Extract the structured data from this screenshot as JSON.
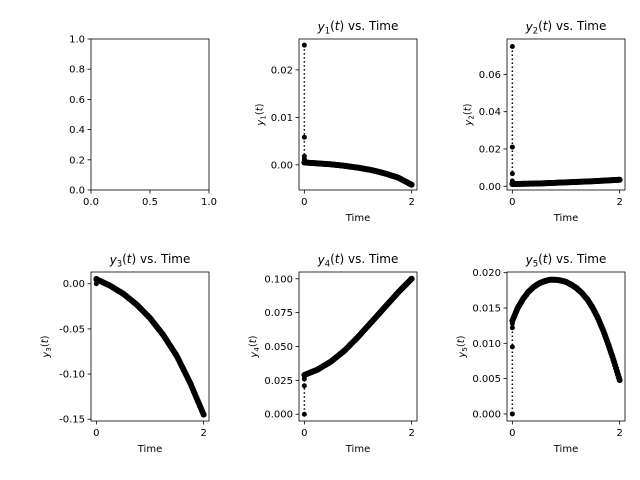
{
  "chart_data": [
    {
      "type": "line",
      "title": "",
      "xlabel": "",
      "ylabel": "",
      "xlim": [
        0,
        1
      ],
      "ylim": [
        0,
        1
      ],
      "xticks": [
        "0.0",
        "0.5",
        "1.0"
      ],
      "yticks": [
        "0.0",
        "0.2",
        "0.4",
        "0.6",
        "0.8",
        "1.0"
      ],
      "series": []
    },
    {
      "type": "scatter",
      "title": "y_1(t) vs. Time",
      "title_parts": [
        "y",
        "1",
        "(t) vs. Time"
      ],
      "xlabel": "Time",
      "ylabel": "y_1(t)",
      "ylabel_parts": [
        "y",
        "1",
        "(t)"
      ],
      "xlim": [
        -0.1,
        2.1
      ],
      "ylim": [
        -0.0053,
        0.0265
      ],
      "xticks": [
        "0",
        "2"
      ],
      "yticks": [
        "0.00",
        "0.01",
        "0.02"
      ],
      "initial_transient": {
        "t": 0,
        "values": [
          0.0252,
          0.0058,
          0.0018,
          0.0012,
          0.0007
        ]
      },
      "curve": {
        "t": [
          0,
          0.25,
          0.5,
          0.75,
          1.0,
          1.25,
          1.5,
          1.75,
          2.0
        ],
        "y": [
          0.0005,
          0.0003,
          0.0001,
          -0.0002,
          -0.0006,
          -0.0011,
          -0.0018,
          -0.0027,
          -0.0042
        ]
      }
    },
    {
      "type": "scatter",
      "title": "y_2(t) vs. Time",
      "title_parts": [
        "y",
        "2",
        "(t) vs. Time"
      ],
      "xlabel": "Time",
      "ylabel": "y_2(t)",
      "ylabel_parts": [
        "y",
        "2",
        "(t)"
      ],
      "xlim": [
        -0.1,
        2.1
      ],
      "ylim": [
        -0.002,
        0.079
      ],
      "xticks": [
        "0",
        "2"
      ],
      "yticks": [
        "0.00",
        "0.02",
        "0.04",
        "0.06"
      ],
      "initial_transient": {
        "t": 0,
        "values": [
          0.075,
          0.021,
          0.0068,
          0.0028,
          0.0015
        ]
      },
      "curve": {
        "t": [
          0,
          0.5,
          1.0,
          1.5,
          2.0
        ],
        "y": [
          0.0012,
          0.0015,
          0.0021,
          0.0027,
          0.0035
        ]
      }
    },
    {
      "type": "scatter",
      "title": "y_3(t) vs. Time",
      "title_parts": [
        "y",
        "3",
        "(t) vs. Time"
      ],
      "xlabel": "Time",
      "ylabel": "y_3(t)",
      "ylabel_parts": [
        "y",
        "3",
        "(t)"
      ],
      "xlim": [
        -0.1,
        2.1
      ],
      "ylim": [
        -0.152,
        0.013
      ],
      "xticks": [
        "0",
        "2"
      ],
      "yticks": [
        "0.00",
        "-0.05",
        "-0.10",
        "-0.15"
      ],
      "initial_transient": {
        "t": 0,
        "values": [
          0.006,
          0.0,
          0.004
        ]
      },
      "curve": {
        "t": [
          0,
          0.25,
          0.5,
          0.75,
          1.0,
          1.25,
          1.5,
          1.75,
          2.0
        ],
        "y": [
          0.005,
          -0.002,
          -0.011,
          -0.023,
          -0.038,
          -0.057,
          -0.08,
          -0.11,
          -0.145
        ]
      }
    },
    {
      "type": "scatter",
      "title": "y_4(t) vs. Time",
      "title_parts": [
        "y",
        "4",
        "(t) vs. Time"
      ],
      "xlabel": "Time",
      "ylabel": "y_4(t)",
      "ylabel_parts": [
        "y",
        "4",
        "(t)"
      ],
      "xlim": [
        -0.1,
        2.1
      ],
      "ylim": [
        -0.005,
        0.105
      ],
      "xticks": [
        "0",
        "2"
      ],
      "yticks": [
        "0.000",
        "0.025",
        "0.050",
        "0.075",
        "0.100"
      ],
      "initial_transient": {
        "t": 0,
        "values": [
          0.0,
          0.021,
          0.026,
          0.028
        ]
      },
      "curve": {
        "t": [
          0,
          0.25,
          0.5,
          0.75,
          1.0,
          1.25,
          1.5,
          1.75,
          2.0
        ],
        "y": [
          0.029,
          0.033,
          0.039,
          0.047,
          0.057,
          0.068,
          0.079,
          0.09,
          0.1
        ]
      }
    },
    {
      "type": "scatter",
      "title": "y_5(t) vs. Time",
      "title_parts": [
        "y",
        "5",
        "(t) vs. Time"
      ],
      "xlabel": "Time",
      "ylabel": "y_5(t)",
      "ylabel_parts": [
        "y",
        "5",
        "(t)"
      ],
      "xlim": [
        -0.1,
        2.1
      ],
      "ylim": [
        -0.001,
        0.0201
      ],
      "xticks": [
        "0",
        "2"
      ],
      "yticks": [
        "0.000",
        "0.005",
        "0.010",
        "0.015",
        "0.020"
      ],
      "initial_transient": {
        "t": 0,
        "values": [
          0.0,
          0.0095,
          0.0122,
          0.0128
        ]
      },
      "curve": {
        "t": [
          0,
          0.1,
          0.2,
          0.3,
          0.4,
          0.5,
          0.6,
          0.7,
          0.8,
          0.9,
          1.0,
          1.1,
          1.2,
          1.3,
          1.4,
          1.5,
          1.6,
          1.7,
          1.8,
          1.9,
          2.0
        ],
        "y": [
          0.0132,
          0.015,
          0.0163,
          0.0173,
          0.018,
          0.0185,
          0.0188,
          0.019,
          0.019,
          0.0189,
          0.0187,
          0.0183,
          0.0178,
          0.0171,
          0.0162,
          0.015,
          0.0135,
          0.0117,
          0.0096,
          0.0073,
          0.0048
        ]
      }
    }
  ]
}
